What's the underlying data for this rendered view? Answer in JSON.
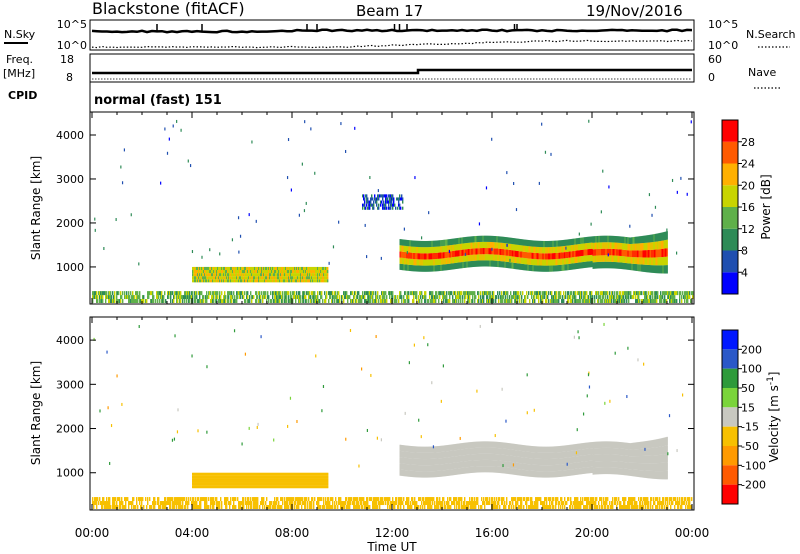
{
  "header": {
    "station": "Blackstone (fitACF)",
    "beam": "Beam 17",
    "date": "19/Nov/2016"
  },
  "summary_panels": {
    "nsky_label": "N.Sky",
    "nsearch_label": "N.Search",
    "noise_ticks_left": [
      "10^5",
      "10^0"
    ],
    "noise_ticks_right": [
      "10^5",
      "10^0"
    ],
    "freq_label": "Freq.",
    "freq_unit": "[MHz]",
    "freq_ticks": [
      "18",
      "8"
    ],
    "nave_label": "Nave",
    "nave_ticks": [
      "60",
      "0"
    ],
    "cpid_label": "CPID",
    "cpid_value": "normal (fast) 151"
  },
  "colors": {
    "power_scale": [
      "#0000ff",
      "#1f4fb0",
      "#2e8b57",
      "#5fb04a",
      "#c8d400",
      "#ffb000",
      "#ff5a00",
      "#ff0000"
    ],
    "velocity_scale": [
      "#0018ff",
      "#2a58c8",
      "#2e9a3a",
      "#7ad43a",
      "#c8c8c0",
      "#f7c000",
      "#ff9a00",
      "#ff5a00",
      "#ff0000"
    ],
    "ground_velocity": "#f2b400",
    "ionospheric_velocity": "#c8c8c0"
  },
  "chart_data": [
    {
      "type": "heatmap",
      "title": "Power",
      "xlabel": "Time UT",
      "ylabel": "Slant Range [km]",
      "x_ticks": [
        "00:00",
        "04:00",
        "08:00",
        "12:00",
        "16:00",
        "20:00",
        "00:00"
      ],
      "y_ticks": [
        1000,
        2000,
        3000,
        4000
      ],
      "xlim": [
        0,
        24
      ],
      "ylim": [
        180,
        4500
      ],
      "colorbar": {
        "label": "Power [dB]",
        "ticks": [
          4,
          8,
          12,
          16,
          20,
          24,
          28
        ],
        "range": [
          0,
          32
        ]
      },
      "features": [
        {
          "name": "ground_scatter_near",
          "t_start": 0,
          "t_end": 24,
          "range_km": [
            180,
            450
          ],
          "power_db": 14
        },
        {
          "name": "evening_band",
          "t_start": 4.0,
          "t_end": 9.4,
          "range_km": [
            650,
            1000
          ],
          "power_db": 18
        },
        {
          "name": "main_band",
          "t_start": 12.3,
          "t_end": 23.0,
          "range_km": [
            900,
            1800
          ],
          "power_db": 26
        },
        {
          "name": "far_echo_stripe",
          "t_start": 10.8,
          "t_end": 12.4,
          "range_km": [
            2300,
            2650
          ],
          "power_db": 6
        }
      ]
    },
    {
      "type": "heatmap",
      "title": "Velocity",
      "xlabel": "Time UT",
      "ylabel": "Slant Range [km]",
      "x_ticks": [
        "00:00",
        "04:00",
        "08:00",
        "12:00",
        "16:00",
        "20:00",
        "00:00"
      ],
      "y_ticks": [
        1000,
        2000,
        3000,
        4000
      ],
      "xlim": [
        0,
        24
      ],
      "ylim": [
        180,
        4500
      ],
      "colorbar": {
        "label": "Velocity [m s^-1]",
        "ticks": [
          "200",
          "100",
          "50",
          "15",
          "-15",
          "-50",
          "-100",
          "-200"
        ]
      },
      "features": [
        {
          "name": "ground_scatter_near",
          "t_start": 0,
          "t_end": 24,
          "range_km": [
            180,
            450
          ],
          "velocity": -30
        },
        {
          "name": "evening_band",
          "t_start": 4.0,
          "t_end": 9.4,
          "range_km": [
            650,
            1000
          ],
          "velocity": -30
        },
        {
          "name": "main_band",
          "t_start": 12.3,
          "t_end": 23.0,
          "range_km": [
            900,
            1800
          ],
          "velocity": 0
        }
      ]
    }
  ]
}
